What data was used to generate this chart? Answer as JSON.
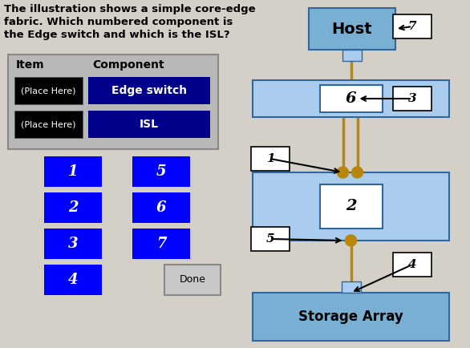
{
  "bg_color": "#d4d0c8",
  "question_text_lines": [
    "The illustration shows a simple core-edge",
    "fabric. Which numbered component is",
    "the Edge switch and which is the ISL?"
  ],
  "item_header": "Item",
  "component_header": "Component",
  "place_here_text": "(Place Here)",
  "edge_switch_text": "Edge switch",
  "isl_text": "ISL",
  "place_here_bg": "#000000",
  "place_here_color": "#ffffff",
  "edge_switch_bg": "#00008b",
  "isl_bg": "#00008b",
  "table_bg": "#b8b8b8",
  "table_border": "#888888",
  "blue_btn_color": "#0000ff",
  "blue_btn_text_color": "#ffffff",
  "btn_labels_col1": [
    "1",
    "2",
    "3",
    "4"
  ],
  "btn_labels_col2": [
    "5",
    "6",
    "7"
  ],
  "done_btn_text": "Done",
  "host_text": "Host",
  "storage_text": "Storage Array",
  "host_box_color": "#7aafd4",
  "storage_box_color": "#7aafd4",
  "core_switch_color": "#aaccee",
  "edge_switch_color": "#aaccee",
  "isl_color": "#b8860b",
  "connector_dot_color": "#b8860b",
  "label_border": "#000000",
  "label_bg": "#ffffff",
  "arrow_color": "#000000"
}
